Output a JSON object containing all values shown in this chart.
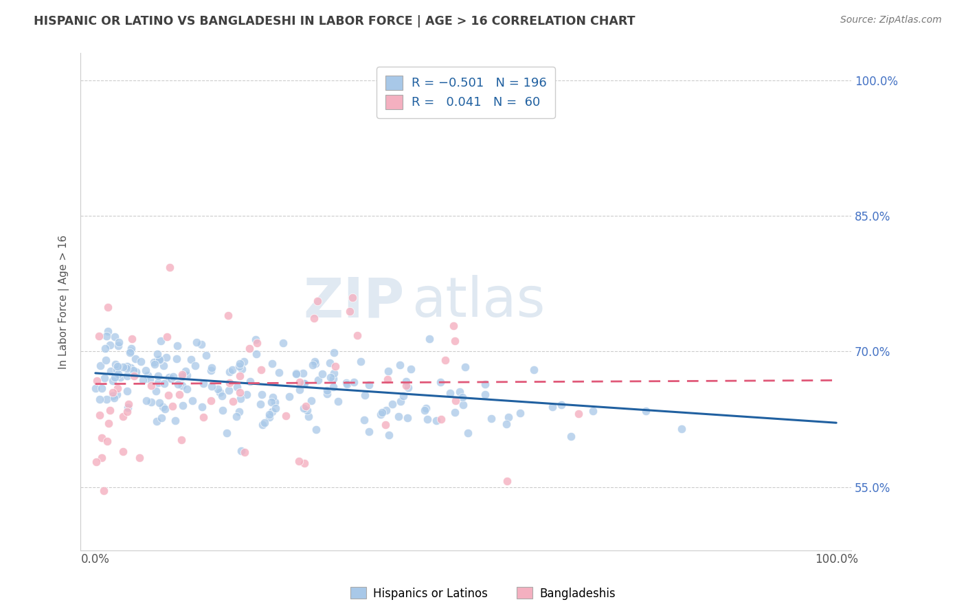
{
  "title": "HISPANIC OR LATINO VS BANGLADESHI IN LABOR FORCE | AGE > 16 CORRELATION CHART",
  "source_text": "Source: ZipAtlas.com",
  "ylabel": "In Labor Force | Age > 16",
  "xlim": [
    -0.02,
    1.02
  ],
  "ylim": [
    0.48,
    1.03
  ],
  "y_tick_vals": [
    0.55,
    0.7,
    0.85,
    1.0
  ],
  "watermark_line1": "ZIP",
  "watermark_line2": "atlas",
  "legend_label1": "Hispanics or Latinos",
  "legend_label2": "Bangladeshis",
  "blue_color": "#a8c8e8",
  "pink_color": "#f4b0c0",
  "blue_line_color": "#2060a0",
  "pink_line_color": "#e05878",
  "title_color": "#404040",
  "background_color": "#ffffff",
  "grid_color": "#cccccc",
  "blue_line_x0": 0.0,
  "blue_line_y0": 0.676,
  "blue_line_x1": 1.0,
  "blue_line_y1": 0.621,
  "pink_line_x0": 0.0,
  "pink_line_y0": 0.664,
  "pink_line_x1": 1.0,
  "pink_line_y1": 0.668
}
